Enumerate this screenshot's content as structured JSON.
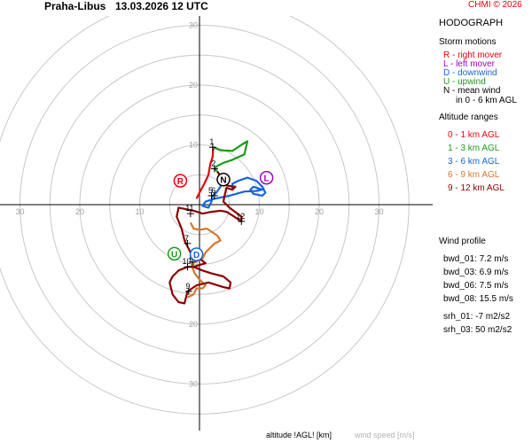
{
  "header": {
    "station": "Praha-Libus",
    "datetime": "13.03.2026 12 UTC",
    "copyright": "CHMI © 2026"
  },
  "colors": {
    "ring": "#c8c8c8",
    "axis": "#000000",
    "r": "#e8000b",
    "l": "#a000c8",
    "d": "#1464dc",
    "u": "#1a9a1a",
    "n": "#000000",
    "alt_0_1": "#e8000b",
    "alt_1_3": "#1a9a1a",
    "alt_3_6": "#1464dc",
    "alt_6_9": "#d2782d",
    "alt_9_12": "#8c0000"
  },
  "side": {
    "title": "HODOGRAPH",
    "storm_title": "Storm motions",
    "storm": [
      {
        "text": "R - right mover",
        "color": "#e8000b"
      },
      {
        "text": "L - left mover",
        "color": "#a000c8"
      },
      {
        "text": "D - downwind",
        "color": "#1464dc"
      },
      {
        "text": "U - upwind",
        "color": "#1a9a1a"
      },
      {
        "text": "N - mean wind",
        "color": "#000000"
      }
    ],
    "storm_note": "in 0 - 6 km AGL",
    "alt_title": "Altitude ranges",
    "alt": [
      {
        "text": "0 - 1 km AGL",
        "color": "#e8000b"
      },
      {
        "text": "1 - 3 km AGL",
        "color": "#1a9a1a"
      },
      {
        "text": "3 - 6 km AGL",
        "color": "#1464dc"
      },
      {
        "text": "6 - 9 km AGL",
        "color": "#d2782d"
      },
      {
        "text": "9 - 12 km AGL",
        "color": "#8c0000"
      }
    ],
    "wind_title": "Wind profile",
    "wind": [
      "bwd_01: 7.2 m/s",
      "bwd_03: 6.9 m/s",
      "bwd_06: 7.5 m/s",
      "bwd_08: 15.5 m/s"
    ],
    "srh": [
      "srh_01: -7 m2/s2",
      "srh_03: 50 m2/s2"
    ]
  },
  "footer": {
    "altitude": "altitude !AGL! [km]",
    "speed": "wind speed [m/s]"
  },
  "chart_data": {
    "type": "hodograph",
    "rings": [
      10,
      20,
      30
    ],
    "tick_labels": [
      "30",
      "20",
      "10",
      "10",
      "20",
      "30"
    ],
    "ring_labels": [
      "30",
      "20",
      "10",
      "10",
      "20",
      "30"
    ],
    "storm_motions": [
      {
        "label": "R",
        "u": -3.2,
        "v": 4.0,
        "color": "#e8000b"
      },
      {
        "label": "L",
        "u": 11.2,
        "v": 4.5,
        "color": "#a000c8"
      },
      {
        "label": "N",
        "u": 4.0,
        "v": 4.2,
        "color": "#000000"
      },
      {
        "label": "U",
        "u": -4.2,
        "v": -8.2,
        "color": "#1a9a1a"
      },
      {
        "label": "D",
        "u": -0.5,
        "v": -8.3,
        "color": "#1464dc"
      }
    ],
    "height_marks": [
      {
        "label": "1",
        "u": 2.2,
        "v": 9.6
      },
      {
        "label": "2",
        "u": 2.5,
        "v": 6.0
      },
      {
        "label": "5",
        "u": 2.0,
        "v": 1.5
      },
      {
        "label": "6",
        "u": 2.5,
        "v": 1.5
      },
      {
        "label": "7",
        "u": -2.0,
        "v": -6.5
      },
      {
        "label": "8",
        "u": -1.2,
        "v": -9.6
      },
      {
        "label": "9",
        "u": -1.8,
        "v": -14.5
      },
      {
        "label": "10",
        "u": -2.0,
        "v": -10.4
      },
      {
        "label": "11",
        "u": -1.5,
        "v": -1.5
      },
      {
        "label": "12",
        "u": 7.0,
        "v": -2.8
      }
    ],
    "series": [
      {
        "range": "0 - 1 km AGL",
        "color": "#e8000b",
        "points": [
          [
            -0.5,
            1.0
          ],
          [
            0.0,
            2.0
          ],
          [
            0.8,
            3.5
          ],
          [
            1.5,
            5.0
          ],
          [
            1.8,
            6.8
          ],
          [
            2.2,
            8.0
          ],
          [
            2.3,
            9.6
          ]
        ]
      },
      {
        "range": "1 - 3 km AGL",
        "color": "#1a9a1a",
        "points": [
          [
            2.3,
            9.6
          ],
          [
            3.5,
            9.1
          ],
          [
            5.5,
            9.0
          ],
          [
            7.0,
            10.0
          ],
          [
            8.0,
            10.6
          ],
          [
            7.5,
            8.4
          ],
          [
            5.5,
            7.5
          ],
          [
            4.0,
            7.0
          ],
          [
            3.0,
            6.5
          ],
          [
            2.5,
            6.0
          ],
          [
            3.0,
            5.5
          ],
          [
            3.8,
            4.5
          ],
          [
            4.0,
            4.0
          ]
        ]
      },
      {
        "range": "3 - 6 km AGL",
        "color": "#1464dc",
        "points": [
          [
            4.0,
            4.0
          ],
          [
            3.5,
            3.0
          ],
          [
            2.8,
            2.0
          ],
          [
            2.2,
            1.5
          ],
          [
            2.0,
            0.5
          ],
          [
            1.5,
            -0.5
          ],
          [
            0.5,
            -0.2
          ],
          [
            1.0,
            0.5
          ],
          [
            2.5,
            1.0
          ],
          [
            5.0,
            1.5
          ],
          [
            7.5,
            2.2
          ],
          [
            9.5,
            2.3
          ],
          [
            10.5,
            2.5
          ],
          [
            9.0,
            3.0
          ],
          [
            8.5,
            2.5
          ],
          [
            9.0,
            1.8
          ],
          [
            10.5,
            1.5
          ],
          [
            11.0,
            2.0
          ],
          [
            10.5,
            3.0
          ],
          [
            9.5,
            4.0
          ],
          [
            8.0,
            4.5
          ],
          [
            6.5,
            4.0
          ],
          [
            5.5,
            3.5
          ],
          [
            5.5,
            2.5
          ]
        ]
      },
      {
        "range": "6 - 9 km AGL",
        "color": "#d2782d",
        "points": [
          [
            -1.5,
            -3.0
          ],
          [
            -1.0,
            -4.0
          ],
          [
            0.0,
            -4.2
          ],
          [
            1.2,
            -4.0
          ],
          [
            2.0,
            -4.5
          ],
          [
            3.0,
            -5.2
          ],
          [
            3.5,
            -6.0
          ],
          [
            2.5,
            -6.5
          ],
          [
            1.5,
            -7.5
          ],
          [
            1.0,
            -8.0
          ],
          [
            0.5,
            -9.0
          ],
          [
            -0.5,
            -9.5
          ],
          [
            -1.0,
            -9.6
          ],
          [
            -1.2,
            -10.5
          ],
          [
            -0.8,
            -11.5
          ],
          [
            0.0,
            -12.5
          ],
          [
            1.0,
            -13.5
          ],
          [
            0.5,
            -14.0
          ],
          [
            -0.5,
            -14.0
          ],
          [
            -1.0,
            -15.0
          ],
          [
            -2.0,
            -15.5
          ]
        ]
      },
      {
        "range": "9 - 12 km AGL",
        "color": "#8c0000",
        "points": [
          [
            3.0,
            5.5
          ],
          [
            4.0,
            4.0
          ],
          [
            4.5,
            3.2
          ],
          [
            6.0,
            3.0
          ],
          [
            5.5,
            2.5
          ],
          [
            4.5,
            2.8
          ],
          [
            4.2,
            1.5
          ],
          [
            4.0,
            0.5
          ],
          [
            5.0,
            -0.5
          ],
          [
            7.0,
            -2.0
          ],
          [
            7.0,
            -2.8
          ],
          [
            5.5,
            -1.8
          ],
          [
            4.5,
            -1.2
          ],
          [
            3.5,
            -1.0
          ],
          [
            2.0,
            -1.2
          ],
          [
            0.5,
            -1.5
          ],
          [
            -1.0,
            -1.0
          ],
          [
            -3.5,
            -0.5
          ],
          [
            -3.8,
            -2.0
          ],
          [
            -3.0,
            -4.0
          ],
          [
            -2.5,
            -6.0
          ],
          [
            -1.5,
            -8.0
          ],
          [
            0.0,
            -9.0
          ],
          [
            1.0,
            -9.8
          ],
          [
            -1.0,
            -10.4
          ],
          [
            -2.0,
            -10.4
          ],
          [
            -3.5,
            -11.0
          ],
          [
            -4.5,
            -12.0
          ],
          [
            -5.0,
            -13.0
          ],
          [
            -4.5,
            -15.0
          ],
          [
            -3.5,
            -16.3
          ],
          [
            -2.5,
            -16.5
          ],
          [
            -2.0,
            -14.5
          ],
          [
            -0.5,
            -13.5
          ],
          [
            1.5,
            -13.0
          ],
          [
            4.0,
            -13.8
          ],
          [
            5.0,
            -14.0
          ],
          [
            5.2,
            -13.0
          ],
          [
            4.0,
            -12.0
          ],
          [
            2.0,
            -11.5
          ],
          [
            0.5,
            -11.0
          ],
          [
            -1.0,
            -10.4
          ]
        ]
      }
    ]
  }
}
